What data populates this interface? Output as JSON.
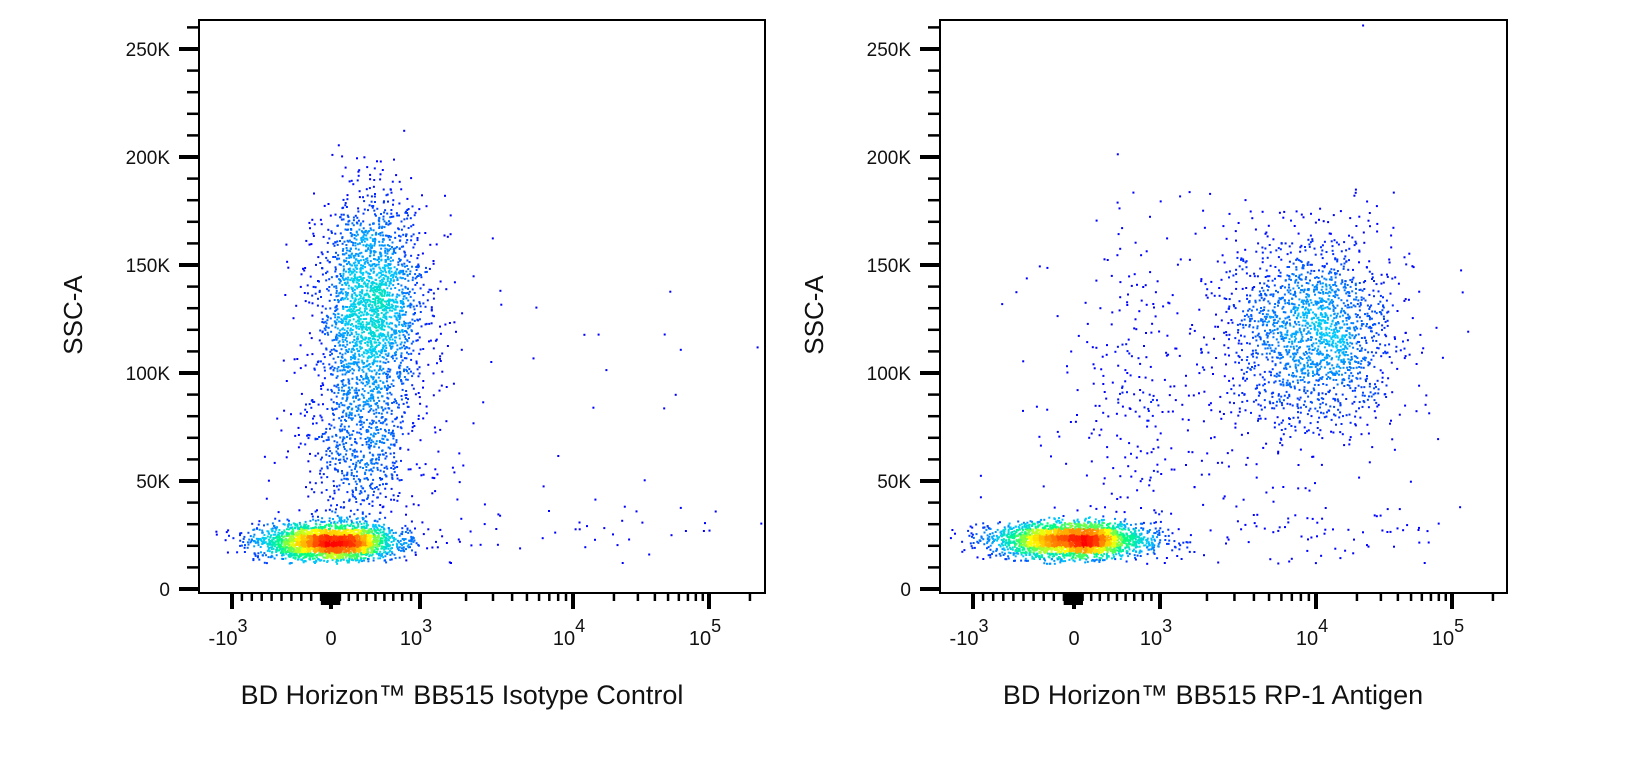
{
  "chart_data": [
    {
      "type": "scatter",
      "subtype": "flow-cytometry density dot plot",
      "xlabel": "BD Horizon™ BB515  Isotype Control",
      "ylabel": "SSC-A",
      "x_scale": "biexponential",
      "x_ticks": [
        {
          "base": "-10",
          "exp": "3",
          "value": -1000
        },
        {
          "base": "0",
          "exp": "",
          "value": 0
        },
        {
          "base": "10",
          "exp": "3",
          "value": 1000
        },
        {
          "base": "10",
          "exp": "4",
          "value": 10000
        },
        {
          "base": "10",
          "exp": "5",
          "value": 100000
        }
      ],
      "y_ticks": [
        {
          "label": "0",
          "value": 0
        },
        {
          "label": "50K",
          "value": 50000
        },
        {
          "label": "100K",
          "value": 100000
        },
        {
          "label": "150K",
          "value": 150000
        },
        {
          "label": "200K",
          "value": 200000
        },
        {
          "label": "250K",
          "value": 250000
        }
      ],
      "xlim": [
        -1300,
        260000
      ],
      "ylim": [
        0,
        264000
      ],
      "colormap": [
        "#0000ff",
        "#00c8ff",
        "#00ff80",
        "#ffff00",
        "#ff8000",
        "#ff0000"
      ],
      "populations": [
        {
          "x_center": 0,
          "x_spread_decades": 0.35,
          "y_center": 22000,
          "y_spread": 4000,
          "count": 3000
        },
        {
          "x_center": 450,
          "x_spread_decades": 0.3,
          "y_center": 130000,
          "y_spread": 25000,
          "count": 2300
        },
        {
          "x_center": 300,
          "x_spread_decades": 0.35,
          "y_center": 65000,
          "y_spread": 20000,
          "count": 700
        },
        {
          "x_center": 10000,
          "x_spread_decades": 0.9,
          "y_center": 28000,
          "y_spread": 6000,
          "count": 45
        },
        {
          "x_center": 10000,
          "x_spread_decades": 0.6,
          "y_center": 100000,
          "y_spread": 40000,
          "count": 20
        }
      ]
    },
    {
      "type": "scatter",
      "subtype": "flow-cytometry density dot plot",
      "xlabel": "BD Horizon™ BB515  RP-1 Antigen",
      "ylabel": "SSC-A",
      "x_scale": "biexponential",
      "x_ticks": [
        {
          "base": "-10",
          "exp": "3",
          "value": -1000
        },
        {
          "base": "0",
          "exp": "",
          "value": 0
        },
        {
          "base": "10",
          "exp": "3",
          "value": 1000
        },
        {
          "base": "10",
          "exp": "4",
          "value": 10000
        },
        {
          "base": "10",
          "exp": "5",
          "value": 100000
        }
      ],
      "y_ticks": [
        {
          "label": "0",
          "value": 0
        },
        {
          "label": "50K",
          "value": 50000
        },
        {
          "label": "100K",
          "value": 100000
        },
        {
          "label": "150K",
          "value": 150000
        },
        {
          "label": "200K",
          "value": 200000
        },
        {
          "label": "250K",
          "value": 250000
        }
      ],
      "xlim": [
        -1300,
        260000
      ],
      "ylim": [
        0,
        264000
      ],
      "colormap": [
        "#0000ff",
        "#00c8ff",
        "#00ff80",
        "#ffff00",
        "#ff8000",
        "#ff0000"
      ],
      "populations": [
        {
          "x_center": 0,
          "x_spread_decades": 0.4,
          "y_center": 23000,
          "y_spread": 4000,
          "count": 3000
        },
        {
          "x_center": 10000,
          "x_spread_decades": 0.28,
          "y_center": 120000,
          "y_spread": 22000,
          "count": 1800
        },
        {
          "x_center": 1000,
          "x_spread_decades": 0.7,
          "y_center": 90000,
          "y_spread": 40000,
          "count": 450
        },
        {
          "x_center": 10000,
          "x_spread_decades": 0.8,
          "y_center": 27000,
          "y_spread": 6000,
          "count": 60
        }
      ]
    }
  ]
}
